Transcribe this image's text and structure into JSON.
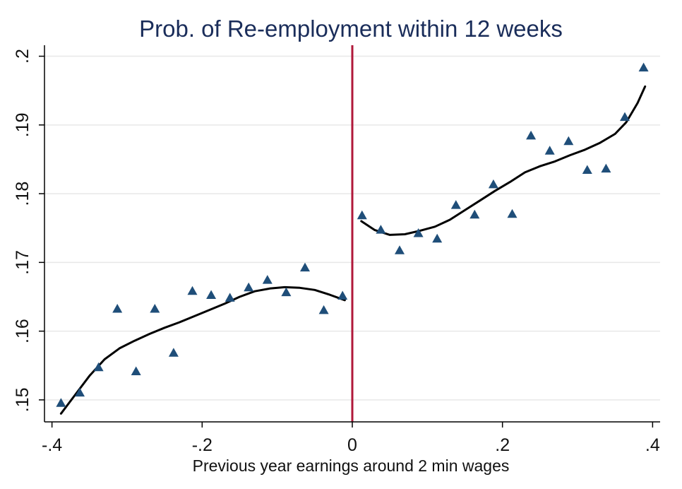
{
  "chart_data": {
    "type": "scatter",
    "title": "Prob. of Re-employment within 12 weeks",
    "xlabel": "Previous year earnings around 2 min wages",
    "ylabel": "",
    "xlim": [
      -0.41,
      0.41
    ],
    "ylim": [
      0.1468,
      0.2016
    ],
    "x_ticks": [
      {
        "value": -0.4,
        "label": "-.4"
      },
      {
        "value": -0.2,
        "label": "-.2"
      },
      {
        "value": 0,
        "label": "0"
      },
      {
        "value": 0.2,
        "label": ".2"
      },
      {
        "value": 0.4,
        "label": ".4"
      }
    ],
    "y_ticks": [
      {
        "value": 0.15,
        "label": ".15"
      },
      {
        "value": 0.16,
        "label": ".16"
      },
      {
        "value": 0.17,
        "label": ".17"
      },
      {
        "value": 0.18,
        "label": ".18"
      },
      {
        "value": 0.19,
        "label": ".19"
      },
      {
        "value": 0.2,
        "label": ".2"
      }
    ],
    "grid": true,
    "cutoff_x": 0,
    "colors": {
      "title": "#1a2d5a",
      "markers": "#1f4e79",
      "fit_line": "#000000",
      "cutoff_line": "#b0183a",
      "grid": "#e8e8e8"
    },
    "scatter": {
      "x": [
        -0.388,
        -0.363,
        -0.338,
        -0.313,
        -0.288,
        -0.263,
        -0.238,
        -0.213,
        -0.188,
        -0.163,
        -0.138,
        -0.113,
        -0.088,
        -0.063,
        -0.038,
        -0.013,
        0.013,
        0.038,
        0.063,
        0.088,
        0.113,
        0.138,
        0.163,
        0.188,
        0.213,
        0.238,
        0.263,
        0.288,
        0.313,
        0.338,
        0.363,
        0.388
      ],
      "y": [
        0.1495,
        0.151,
        0.1547,
        0.1632,
        0.1541,
        0.1632,
        0.1568,
        0.1658,
        0.1652,
        0.1648,
        0.1663,
        0.1674,
        0.1656,
        0.1692,
        0.163,
        0.1651,
        0.1768,
        0.1747,
        0.1717,
        0.1742,
        0.1734,
        0.1783,
        0.1769,
        0.1813,
        0.177,
        0.1884,
        0.1862,
        0.1876,
        0.1834,
        0.1836,
        0.1911,
        0.1983
      ]
    },
    "fit_left": {
      "x": [
        -0.388,
        -0.37,
        -0.35,
        -0.33,
        -0.31,
        -0.29,
        -0.27,
        -0.25,
        -0.23,
        -0.21,
        -0.19,
        -0.17,
        -0.15,
        -0.13,
        -0.11,
        -0.09,
        -0.07,
        -0.05,
        -0.03,
        -0.01
      ],
      "y": [
        0.148,
        0.1506,
        0.1535,
        0.1559,
        0.1575,
        0.1586,
        0.1596,
        0.1605,
        0.1613,
        0.1622,
        0.1631,
        0.164,
        0.165,
        0.1658,
        0.1662,
        0.1664,
        0.1663,
        0.166,
        0.1653,
        0.1645
      ]
    },
    "fit_right": {
      "x": [
        0.012,
        0.03,
        0.05,
        0.07,
        0.09,
        0.11,
        0.13,
        0.15,
        0.17,
        0.19,
        0.21,
        0.23,
        0.25,
        0.27,
        0.29,
        0.31,
        0.33,
        0.35,
        0.365,
        0.38,
        0.39
      ],
      "y": [
        0.176,
        0.1747,
        0.174,
        0.1741,
        0.1746,
        0.1752,
        0.1762,
        0.1776,
        0.179,
        0.1804,
        0.1817,
        0.1831,
        0.184,
        0.1847,
        0.1856,
        0.1864,
        0.1874,
        0.1887,
        0.1904,
        0.1932,
        0.1956
      ]
    }
  }
}
